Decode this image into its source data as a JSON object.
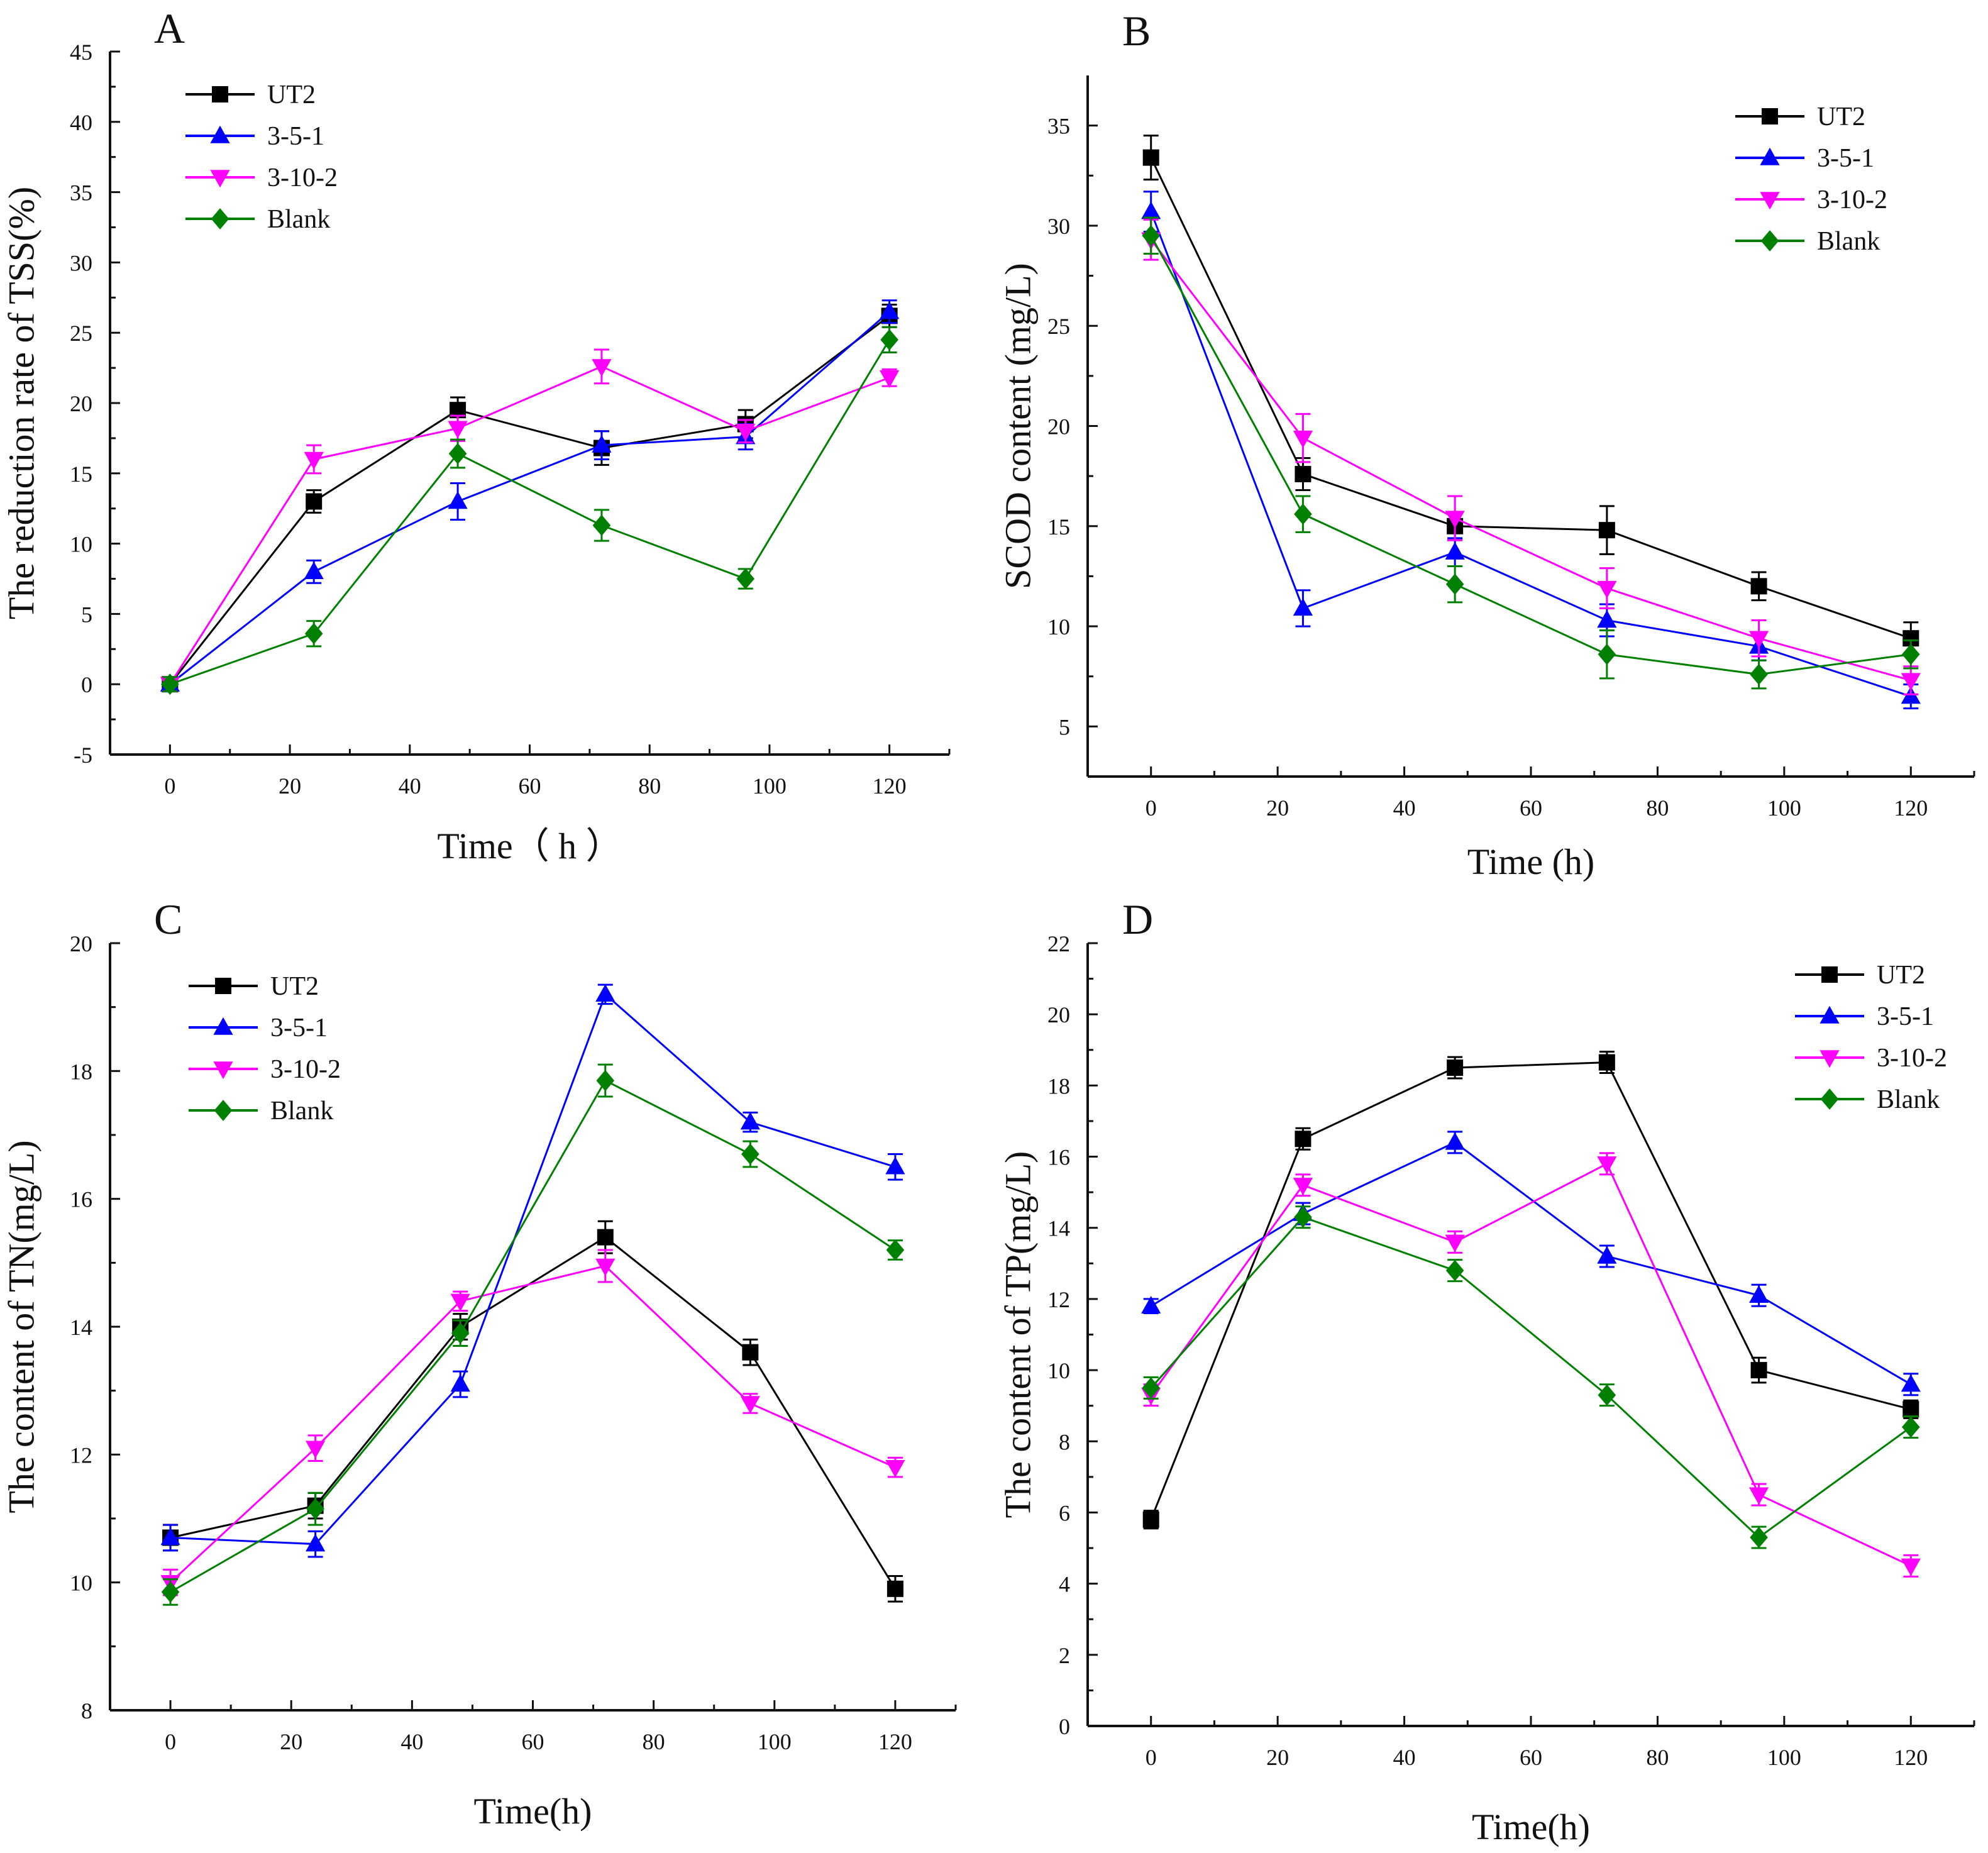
{
  "figure": {
    "panels": [
      "A",
      "B",
      "C",
      "D"
    ]
  },
  "chart_data": [
    {
      "panel": "A",
      "type": "line",
      "title": "",
      "xlabel": "Time（ h ）",
      "ylabel": "The reduction rate of TSS(%)",
      "xlim": [
        -10,
        130
      ],
      "ylim": [
        -5,
        45
      ],
      "xticks": [
        0,
        20,
        40,
        60,
        80,
        100,
        120
      ],
      "xtick_labels": [
        "0",
        "20",
        "40",
        "60",
        "80",
        "100",
        "120"
      ],
      "yticks": [
        -5,
        0,
        5,
        10,
        15,
        20,
        25,
        30,
        35,
        40,
        45
      ],
      "ytick_labels": [
        "-5",
        "0",
        "5",
        "10",
        "15",
        "20",
        "25",
        "30",
        "35",
        "40",
        "45"
      ],
      "x": [
        0,
        24,
        48,
        72,
        96,
        120
      ],
      "legend_position": "top-left",
      "series": [
        {
          "name": "UT2",
          "color": "#000000",
          "marker": "square",
          "values": [
            0,
            13,
            19.5,
            16.8,
            18.5,
            26.2
          ],
          "errors": [
            0.5,
            0.8,
            0.9,
            1.2,
            1.0,
            0.8
          ]
        },
        {
          "name": "3-5-1",
          "color": "#0000ff",
          "marker": "triangle-up",
          "values": [
            0,
            8,
            13,
            17,
            17.6,
            26.5
          ],
          "errors": [
            0.5,
            0.8,
            1.3,
            1.0,
            0.9,
            0.8
          ]
        },
        {
          "name": "3-10-2",
          "color": "#ff00ff",
          "marker": "triangle-down",
          "values": [
            0,
            16,
            18.2,
            22.6,
            18,
            21.8
          ],
          "errors": [
            0.5,
            1.0,
            0.9,
            1.2,
            0.8,
            0.6
          ]
        },
        {
          "name": "Blank",
          "color": "#008000",
          "marker": "diamond",
          "values": [
            0,
            3.6,
            16.4,
            11.3,
            7.5,
            24.5
          ],
          "errors": [
            0.5,
            0.9,
            1.0,
            1.1,
            0.7,
            0.9
          ]
        }
      ]
    },
    {
      "panel": "B",
      "type": "line",
      "title": "",
      "xlabel": "Time (h)",
      "ylabel": "SCOD content (mg/L)",
      "xlim": [
        -10,
        130
      ],
      "ylim": [
        2.5,
        37.5
      ],
      "xticks": [
        0,
        20,
        40,
        60,
        80,
        100,
        120
      ],
      "xtick_labels": [
        "0",
        "20",
        "40",
        "60",
        "80",
        "100",
        "120"
      ],
      "yticks": [
        5,
        10,
        15,
        20,
        25,
        30,
        35
      ],
      "ytick_labels": [
        "5",
        "10",
        "15",
        "20",
        "25",
        "30",
        "35"
      ],
      "x": [
        0,
        24,
        48,
        72,
        96,
        120
      ],
      "legend_position": "top-right",
      "series": [
        {
          "name": "UT2",
          "color": "#000000",
          "marker": "square",
          "values": [
            33.4,
            17.6,
            15,
            14.8,
            12,
            9.4
          ],
          "errors": [
            1.1,
            0.8,
            0.7,
            1.2,
            0.7,
            0.8
          ]
        },
        {
          "name": "3-5-1",
          "color": "#0000ff",
          "marker": "triangle-up",
          "values": [
            30.7,
            10.9,
            13.7,
            10.3,
            9.0,
            6.5
          ],
          "errors": [
            1.0,
            0.9,
            0.7,
            0.8,
            0.7,
            0.6
          ]
        },
        {
          "name": "3-10-2",
          "color": "#ff00ff",
          "marker": "triangle-down",
          "values": [
            29.3,
            19.4,
            15.4,
            11.9,
            9.4,
            7.3
          ],
          "errors": [
            1.0,
            1.2,
            1.1,
            1.0,
            0.9,
            0.7
          ]
        },
        {
          "name": "Blank",
          "color": "#008000",
          "marker": "diamond",
          "values": [
            29.5,
            15.6,
            12.1,
            8.6,
            7.6,
            8.6
          ],
          "errors": [
            0.9,
            0.9,
            0.9,
            1.2,
            0.7,
            0.7
          ]
        }
      ]
    },
    {
      "panel": "C",
      "type": "line",
      "title": "",
      "xlabel": "Time(h)",
      "ylabel": "The content of TN(mg/L)",
      "xlim": [
        -10,
        130
      ],
      "ylim": [
        8,
        20
      ],
      "xticks": [
        0,
        20,
        40,
        60,
        80,
        100,
        120
      ],
      "xtick_labels": [
        "0",
        "20",
        "40",
        "60",
        "80",
        "100",
        "120"
      ],
      "yticks": [
        8,
        10,
        12,
        14,
        16,
        18,
        20
      ],
      "ytick_labels": [
        "8",
        "10",
        "12",
        "14",
        "16",
        "18",
        "20"
      ],
      "x": [
        0,
        24,
        48,
        72,
        96,
        120
      ],
      "legend_position": "top-left",
      "series": [
        {
          "name": "UT2",
          "color": "#000000",
          "marker": "square",
          "values": [
            10.7,
            11.2,
            14,
            15.4,
            13.6,
            9.9
          ],
          "errors": [
            0.2,
            0.2,
            0.2,
            0.25,
            0.2,
            0.2
          ]
        },
        {
          "name": "3-5-1",
          "color": "#0000ff",
          "marker": "triangle-up",
          "values": [
            10.7,
            10.6,
            13.1,
            19.2,
            17.2,
            16.5
          ],
          "errors": [
            0.2,
            0.2,
            0.2,
            0.15,
            0.15,
            0.2
          ]
        },
        {
          "name": "3-10-2",
          "color": "#ff00ff",
          "marker": "triangle-down",
          "values": [
            10,
            12.1,
            14.4,
            14.95,
            12.8,
            11.8
          ],
          "errors": [
            0.2,
            0.2,
            0.15,
            0.25,
            0.15,
            0.15
          ]
        },
        {
          "name": "Blank",
          "color": "#008000",
          "marker": "diamond",
          "values": [
            9.85,
            11.15,
            13.9,
            17.85,
            16.7,
            15.2
          ],
          "errors": [
            0.2,
            0.25,
            0.2,
            0.25,
            0.2,
            0.15
          ]
        }
      ]
    },
    {
      "panel": "D",
      "type": "line",
      "title": "",
      "xlabel": "Time(h)",
      "ylabel": "The content of TP(mg/L)",
      "xlim": [
        -10,
        130
      ],
      "ylim": [
        0,
        22
      ],
      "xticks": [
        0,
        20,
        40,
        60,
        80,
        100,
        120
      ],
      "xtick_labels": [
        "0",
        "20",
        "40",
        "60",
        "80",
        "100",
        "120"
      ],
      "yticks": [
        0,
        2,
        4,
        6,
        8,
        10,
        12,
        14,
        16,
        18,
        20,
        22
      ],
      "ytick_labels": [
        "0",
        "2",
        "4",
        "6",
        "8",
        "10",
        "12",
        "14",
        "16",
        "18",
        "20",
        "22"
      ],
      "x": [
        0,
        24,
        48,
        72,
        96,
        120
      ],
      "legend_position": "top-right",
      "series": [
        {
          "name": "UT2",
          "color": "#000000",
          "marker": "square",
          "values": [
            5.8,
            16.5,
            18.5,
            18.65,
            10,
            8.9
          ],
          "errors": [
            0.25,
            0.3,
            0.3,
            0.3,
            0.35,
            0.25
          ]
        },
        {
          "name": "3-5-1",
          "color": "#0000ff",
          "marker": "triangle-up",
          "values": [
            11.8,
            14.4,
            16.4,
            13.2,
            12.1,
            9.6
          ],
          "errors": [
            0.2,
            0.3,
            0.3,
            0.3,
            0.3,
            0.3
          ]
        },
        {
          "name": "3-10-2",
          "color": "#ff00ff",
          "marker": "triangle-down",
          "values": [
            9.3,
            15.2,
            13.6,
            15.8,
            6.5,
            4.5
          ],
          "errors": [
            0.3,
            0.3,
            0.3,
            0.3,
            0.3,
            0.3
          ]
        },
        {
          "name": "Blank",
          "color": "#008000",
          "marker": "diamond",
          "values": [
            9.5,
            14.3,
            12.8,
            9.3,
            5.3,
            8.4
          ],
          "errors": [
            0.3,
            0.3,
            0.3,
            0.3,
            0.3,
            0.3
          ]
        }
      ]
    }
  ]
}
